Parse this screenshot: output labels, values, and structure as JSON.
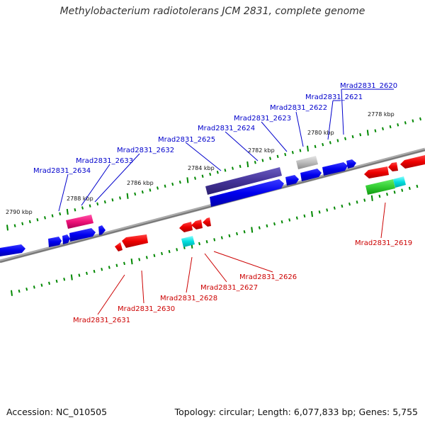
{
  "title": "Methylobacterium radiotolerans JCM 2831, complete genome",
  "footer": {
    "accession": "Accession: NC_010505",
    "topology": "Topology: circular; Length: 6,077,833 bp; Genes: 5,755"
  },
  "kbp_labels": [
    "2778 kbp",
    "2780 kbp",
    "2782 kbp",
    "2784 kbp",
    "2786 kbp",
    "2788 kbp",
    "2790 kbp"
  ],
  "colors": {
    "forward_label": "#0000cc",
    "reverse_label": "#cc0000",
    "gene_blue": "#0000ee",
    "gene_red": "#ee0000",
    "gene_purple": "#443399",
    "gene_magenta": "#ee1177",
    "gene_green": "#33cc33",
    "gene_cyan": "#00dddd",
    "gene_grey": "#bbbbbb",
    "tick_green": "#008800",
    "backbone": "#888888"
  },
  "forward_genes": [
    "Mrad2831_2620",
    "Mrad2831_2621",
    "Mrad2831_2622",
    "Mrad2831_2623",
    "Mrad2831_2624",
    "Mrad2831_2625",
    "Mrad2831_2632",
    "Mrad2831_2633",
    "Mrad2831_2634"
  ],
  "reverse_genes": [
    "Mrad2831_2619",
    "Mrad2831_2626",
    "Mrad2831_2627",
    "Mrad2831_2628",
    "Mrad2831_2630",
    "Mrad2831_2631"
  ]
}
